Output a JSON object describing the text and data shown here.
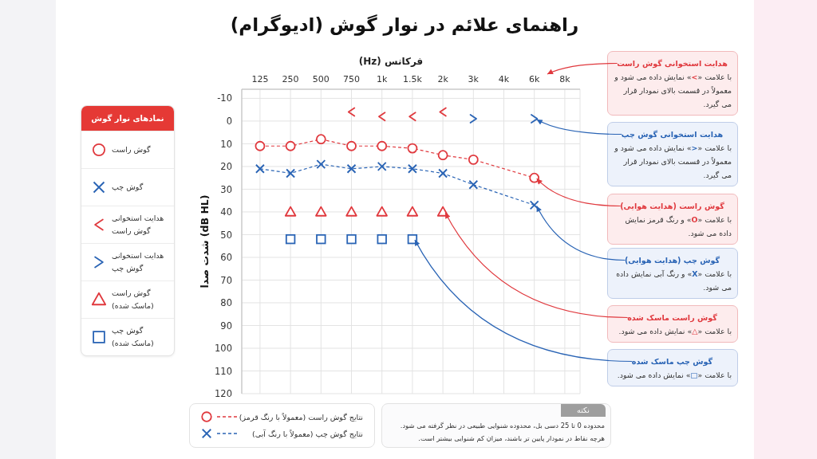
{
  "chart_data": {
    "type": "line",
    "title": "راهنمای علائم در نوار گوش (ادیوگرام)",
    "xlabel": "فرکانس (Hz)",
    "ylabel": "شدت صدا (dB HL)",
    "legend_title": "نمادهای نوار گوش",
    "categories": [
      "125",
      "250",
      "500",
      "750",
      "1k",
      "1.5k",
      "2k",
      "3k",
      "4k",
      "6k",
      "8k"
    ],
    "series": [
      {
        "name": "گوش راست",
        "color": "#e0393e",
        "marker": "circle",
        "line_style": "dashed",
        "values": [
          11,
          11,
          8,
          11,
          11,
          12,
          15,
          17,
          null,
          25,
          null
        ]
      },
      {
        "name": "گوش چپ",
        "color": "#2a64b5",
        "marker": "cross",
        "line_style": "dashed",
        "values": [
          21,
          23,
          19,
          21,
          20,
          21,
          23,
          28,
          null,
          37,
          null
        ]
      },
      {
        "name": "هدایت استخوانی گوش راست",
        "type": "scatter",
        "color": "#e0393e",
        "values": [
          null,
          null,
          null,
          -4,
          -2,
          -2,
          -4,
          null,
          null,
          null,
          null
        ]
      },
      {
        "name": "هدایت استخوانی گوش چپ",
        "type": "scatter",
        "color": "#2a64b5",
        "values": [
          null,
          null,
          null,
          null,
          null,
          null,
          null,
          -1,
          null,
          -1,
          null
        ]
      },
      {
        "name": "گوش راست (ماسک شده)",
        "type": "scatter",
        "color": "#e0393e",
        "marker": "triangle",
        "values": [
          null,
          40,
          40,
          40,
          40,
          40,
          40,
          null,
          null,
          null,
          null
        ]
      },
      {
        "name": "گوش چپ (ماسک شده)",
        "type": "scatter",
        "color": "#2a64b5",
        "marker": "square",
        "values": [
          null,
          52,
          52,
          52,
          52,
          52,
          null,
          null,
          null,
          null,
          null
        ]
      }
    ],
    "ylim": [
      120,
      -14
    ],
    "yticks": [
      -10,
      0,
      10,
      20,
      30,
      40,
      50,
      60,
      70,
      80,
      90,
      100,
      110,
      120
    ],
    "grid": true,
    "legend": "left",
    "annotations": [
      "هدایت استخوانی گوش راست",
      "با علامت «>» نمایش داده می شود و معمولاً در قسمت بالای نمودار قرار می گیرد.",
      {
        "text": "هدایت استخوانی گوش چپ",
        "x": "6k",
        "y": -1
      },
      "با علامت «<» نمایش داده می شود و معمولاً در قسمت بالای نمودار قرار می گیرد.",
      {
        "text": "گوش راست (هدایت هوایی)",
        "x": "6k",
        "y": 25
      },
      "با علامت «O» و رنگ قرمز نمایش داده می شود.",
      {
        "text": "گوش چپ (هدایت هوایی)",
        "x": "6k",
        "y": 37
      },
      "با علامت «X» و رنگ آبی نمایش داده می شود.",
      {
        "text": "گوش راست ماسک شده",
        "x": "2k",
        "y": 40
      },
      "با علامت «△» نمایش داده می شود.",
      {
        "text": "گوش چپ ماسک شده",
        "x": "1.5k",
        "y": 52
      },
      "با علامت «□» نمایش داده می شود.",
      "نتایج گوش راست (معمولاً با رنگ قرمز)",
      "نتایج گوش چپ (معمولاً با رنگ آبی)",
      "نکته",
      "محدوده 0 تا 25 دسی بل، محدوده شنوایی طبیعی در نظر گرفته می شود.",
      "هرچه نقاط در نمودار پایین تر باشند، میزان کم شنوایی بیشتر است."
    ]
  }
}
